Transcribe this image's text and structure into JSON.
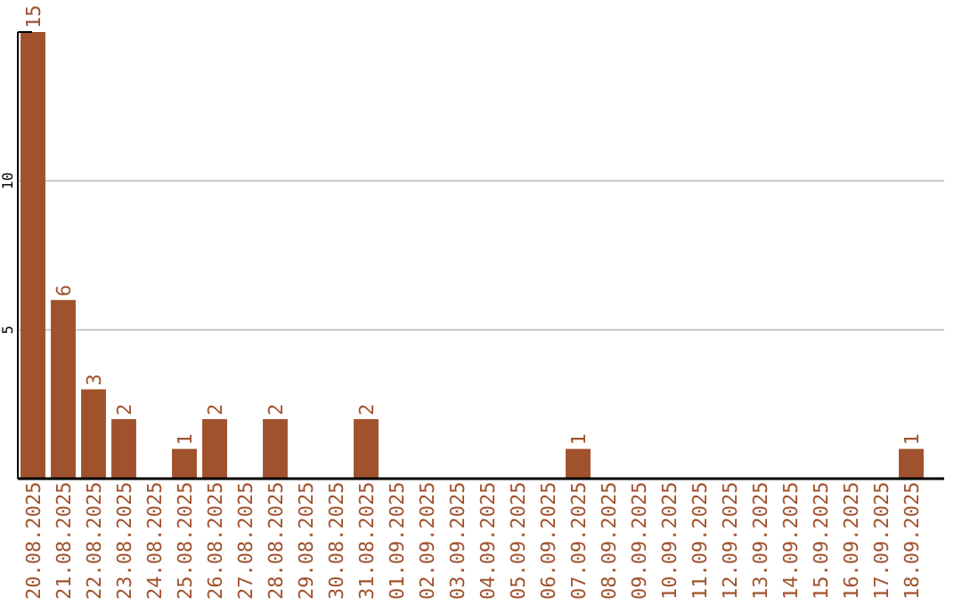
{
  "chart_data": {
    "type": "bar",
    "categories": [
      "20.08.2025",
      "21.08.2025",
      "22.08.2025",
      "23.08.2025",
      "24.08.2025",
      "25.08.2025",
      "26.08.2025",
      "27.08.2025",
      "28.08.2025",
      "29.08.2025",
      "30.08.2025",
      "31.08.2025",
      "01.09.2025",
      "02.09.2025",
      "03.09.2025",
      "04.09.2025",
      "05.09.2025",
      "06.09.2025",
      "07.09.2025",
      "08.09.2025",
      "09.09.2025",
      "10.09.2025",
      "11.09.2025",
      "12.09.2025",
      "13.09.2025",
      "14.09.2025",
      "15.09.2025",
      "16.09.2025",
      "17.09.2025",
      "18.09.2025"
    ],
    "values": [
      15,
      6,
      3,
      2,
      0,
      1,
      2,
      0,
      2,
      0,
      0,
      2,
      0,
      0,
      0,
      0,
      0,
      0,
      1,
      0,
      0,
      0,
      0,
      0,
      0,
      0,
      0,
      0,
      0,
      1
    ],
    "value_labels": [
      "15",
      "6",
      "3",
      "2",
      null,
      "1",
      "2",
      null,
      "2",
      null,
      null,
      "2",
      null,
      null,
      null,
      null,
      null,
      null,
      "1",
      null,
      null,
      null,
      null,
      null,
      null,
      null,
      null,
      null,
      null,
      "1"
    ],
    "color": "#a0522d",
    "ylim": [
      0,
      15
    ],
    "yticks": [
      5,
      10
    ],
    "grid": "y"
  }
}
